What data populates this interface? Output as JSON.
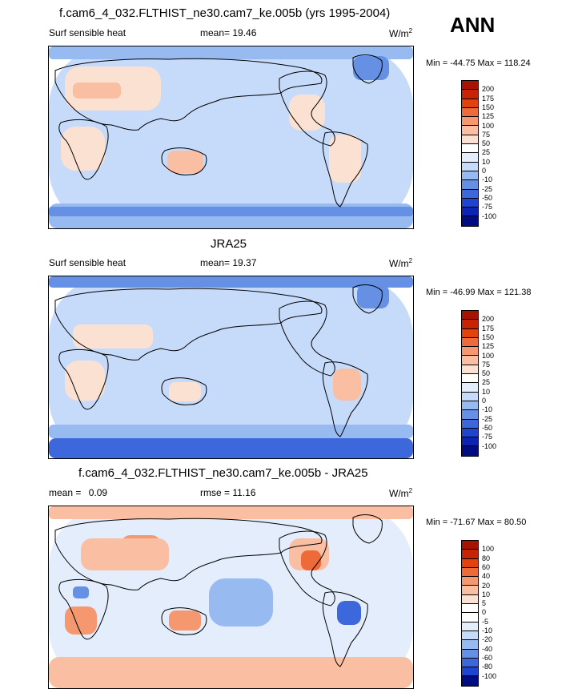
{
  "season": "ANN",
  "panels": [
    {
      "title": "f.cam6_4_032.FLTHIST_ne30.cam7_ke.005b (yrs 1995-2004)",
      "left_label": "Surf sensible heat",
      "stat_label": "mean=",
      "stat_value": "19.46",
      "units": "W/m",
      "units_sup": "2",
      "minmax": "Min = -44.75 Max = 118.24",
      "levels": [
        "200",
        "175",
        "150",
        "125",
        "100",
        "75",
        "50",
        "25",
        "10",
        "0",
        "-10",
        "-25",
        "-50",
        "-75",
        "-100"
      ],
      "colors": [
        "#a81200",
        "#c62403",
        "#e2420b",
        "#ee6a39",
        "#f59870",
        "#fabfa3",
        "#fbe1d2",
        "#ffffff",
        "#e3edfc",
        "#c6dafa",
        "#97baf1",
        "#6590e3",
        "#3d68dc",
        "#1f44d0",
        "#0b25b2",
        "#000d82"
      ]
    },
    {
      "title": "JRA25",
      "left_label": "Surf sensible heat",
      "stat_label": "mean=",
      "stat_value": "19.37",
      "units": "W/m",
      "units_sup": "2",
      "minmax": "Min = -46.99 Max = 121.38",
      "levels": [
        "200",
        "175",
        "150",
        "125",
        "100",
        "75",
        "50",
        "25",
        "10",
        "0",
        "-10",
        "-25",
        "-50",
        "-75",
        "-100"
      ],
      "colors": [
        "#a81200",
        "#c62403",
        "#e2420b",
        "#ee6a39",
        "#f59870",
        "#fabfa3",
        "#fbe1d2",
        "#ffffff",
        "#e3edfc",
        "#c6dafa",
        "#97baf1",
        "#6590e3",
        "#3d68dc",
        "#1f44d0",
        "#0b25b2",
        "#000d82"
      ]
    },
    {
      "title": "f.cam6_4_032.FLTHIST_ne30.cam7_ke.005b - JRA25",
      "left_label": "mean =",
      "left_value": "0.09",
      "stat_label": "rmse =",
      "stat_value": "11.16",
      "units": "W/m",
      "units_sup": "2",
      "minmax": "Min = -71.67 Max =  80.50",
      "levels": [
        "100",
        "80",
        "60",
        "40",
        "20",
        "10",
        "5",
        "0",
        "-5",
        "-10",
        "-20",
        "-40",
        "-60",
        "-80",
        "-100"
      ],
      "colors": [
        "#a81200",
        "#c62403",
        "#e2420b",
        "#ee6a39",
        "#f59870",
        "#fabfa3",
        "#fbe1d2",
        "#ffffff",
        "#ffffff",
        "#e3edfc",
        "#c6dafa",
        "#97baf1",
        "#6590e3",
        "#3d68dc",
        "#1f44d0",
        "#000d82"
      ]
    }
  ]
}
